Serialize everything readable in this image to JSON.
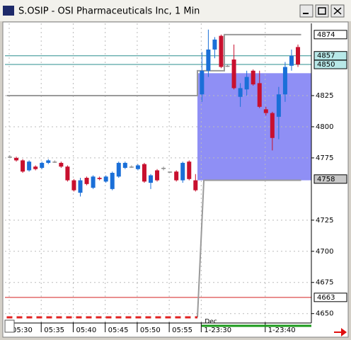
{
  "window": {
    "title": "S.OSIP - OSI Pharmaceuticals Inc, 1 Min"
  },
  "chart_data": {
    "type": "candlestick",
    "categories": [
      "05:30",
      null,
      null,
      null,
      null,
      "05:35",
      null,
      null,
      null,
      null,
      "05:40",
      null,
      null,
      null,
      null,
      "05:45",
      null,
      null,
      null,
      null,
      "05:50",
      null,
      null,
      null,
      null,
      "05:55",
      null,
      null,
      null,
      null,
      "1-23:30",
      null,
      null,
      null,
      null,
      null,
      null,
      null,
      null,
      null,
      "1-23:40",
      null,
      null,
      null,
      null,
      null
    ],
    "open": [
      4776,
      4775,
      4773,
      4765,
      4768,
      4767,
      4771,
      4772,
      4771,
      4768,
      4757,
      4747,
      4759,
      4751,
      4759,
      4756,
      4750,
      4760,
      4767,
      4768,
      4766,
      4770,
      4755,
      4765,
      4767,
      4764,
      4764,
      4757,
      4772,
      4757,
      4826,
      4845,
      4862,
      4873,
      4849,
      4854,
      4824,
      4830,
      4845,
      4835,
      4814,
      4811,
      4808,
      4826,
      4849,
      4864
    ],
    "high": [
      4777,
      4776,
      4774,
      4773,
      4769,
      4772,
      4774,
      4773,
      4772,
      4769,
      4758,
      4759,
      4760,
      4761,
      4760,
      4761,
      4764,
      4772,
      4772,
      4769,
      4770,
      4771,
      4762,
      4766,
      4768,
      4764,
      4765,
      4772,
      4773,
      4762,
      4860,
      4878,
      4872,
      4874,
      4850,
      4866,
      4835,
      4845,
      4846,
      4845,
      4816,
      4812,
      4832,
      4852,
      4862,
      4866
    ],
    "low": [
      4775,
      4772,
      4763,
      4764,
      4765,
      4766,
      4770,
      4771,
      4767,
      4756,
      4748,
      4744,
      4753,
      4750,
      4757,
      4755,
      4749,
      4759,
      4766,
      4767,
      4765,
      4755,
      4750,
      4756,
      4765,
      4763,
      4756,
      4755,
      4757,
      4748,
      4820,
      4840,
      4855,
      4847,
      4848,
      4830,
      4816,
      4825,
      4833,
      4815,
      4809,
      4781,
      4790,
      4820,
      4845,
      4848
    ],
    "close": [
      4776,
      4773,
      4764,
      4772,
      4766,
      4771,
      4773,
      4772,
      4768,
      4757,
      4749,
      4757,
      4754,
      4760,
      4758,
      4760,
      4763,
      4771,
      4771,
      4768,
      4769,
      4756,
      4761,
      4757,
      4767,
      4764,
      4757,
      4771,
      4758,
      4749,
      4845,
      4862,
      4870,
      4848,
      4849,
      4831,
      4831,
      4840,
      4834,
      4816,
      4811,
      4791,
      4826,
      4848,
      4857,
      4850
    ],
    "up_color": "#1a6fd8",
    "down_color": "#c8102e",
    "flat_color": "#8c8c8c",
    "date_marker": {
      "label": "Dec",
      "x": 30
    },
    "ylim": [
      4643,
      4883
    ],
    "yticks": [
      4825,
      4800,
      4775,
      4725,
      4700,
      4675,
      4650
    ],
    "grid": true,
    "levels": [
      {
        "value": 4857,
        "color": "#2b8f8f"
      },
      {
        "value": 4850,
        "color": "#2b8f8f"
      },
      {
        "value": 4663,
        "color": "#d42020"
      }
    ],
    "price_markers": [
      {
        "value": 4874,
        "color": "#ffffff"
      },
      {
        "value": 4857,
        "color": "#b8e8e8"
      },
      {
        "value": 4850,
        "color": "#b8e8e8"
      },
      {
        "value": 4758,
        "color": "#c8c8c8"
      },
      {
        "value": 4663,
        "color": "#ffffff"
      }
    ],
    "step_lines": [
      {
        "color": "#9a9a9a",
        "dash": false,
        "points": [
          [
            -0.5,
            4825
          ],
          [
            29.3,
            4825
          ],
          [
            29.3,
            4845
          ],
          [
            33.5,
            4845
          ],
          [
            33.5,
            4874
          ],
          [
            45.5,
            4874
          ]
        ]
      },
      {
        "color": "#9a9a9a",
        "dash": false,
        "points": [
          [
            29.3,
            4647
          ],
          [
            30.3,
            4757
          ],
          [
            45.5,
            4757
          ]
        ]
      },
      {
        "color": "#e02020",
        "dash": true,
        "points": [
          [
            -0.5,
            4647
          ],
          [
            29.3,
            4647
          ]
        ]
      }
    ],
    "zone": {
      "from": 29.3,
      "low": 4757,
      "high": 4843,
      "color": "#6a6af2"
    }
  }
}
